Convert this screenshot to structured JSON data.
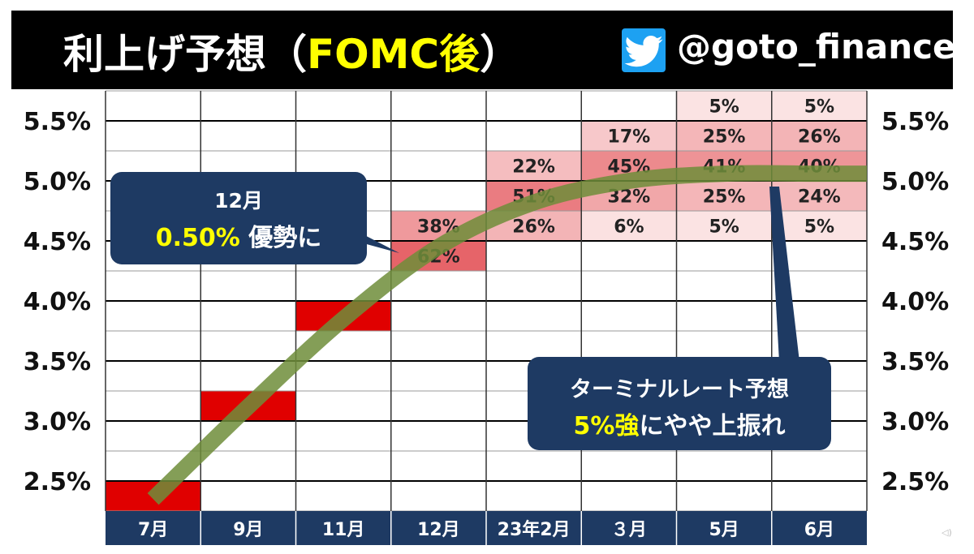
{
  "header": {
    "title_prefix": "利上げ予想（",
    "title_highlight": "FOMC後",
    "title_suffix": "）",
    "handle": "@goto_finance",
    "icon": "twitter-bird-icon"
  },
  "callouts": {
    "december": {
      "line1": "12月",
      "line2_highlight": "0.50%",
      "line2_rest": " 優勢に"
    },
    "terminal": {
      "line1": "ターミナルレート予想",
      "line2_highlight": "5%強",
      "line2_rest": "にやや上振れ"
    }
  },
  "colors": {
    "header_bg": "#000000",
    "title_highlight": "#ffff00",
    "callout_bg": "#1e3a63",
    "xaxis_bg": "#1e3a63",
    "current_rate_red": "#e00000",
    "trend_line": "#6f8d3a"
  },
  "chart_data": {
    "type": "heatmap",
    "title": "利上げ予想（FOMC後）",
    "categories": [
      "7月",
      "9月",
      "11月",
      "12月",
      "23年2月",
      "３月",
      "5月",
      "6月"
    ],
    "y_ticks": [
      "2.5%",
      "3.0%",
      "3.5%",
      "4.0%",
      "4.5%",
      "5.0%",
      "5.5%"
    ],
    "y_range": [
      2.25,
      5.75
    ],
    "bucket_size": 0.25,
    "realized_rate": [
      {
        "month": "7月",
        "low": 2.25,
        "high": 2.5
      },
      {
        "month": "9月",
        "low": 3.0,
        "high": 3.25
      },
      {
        "month": "11月",
        "low": 3.75,
        "high": 4.0
      }
    ],
    "probabilities": [
      {
        "month": "12月",
        "cells": [
          {
            "low": 4.5,
            "p": 38,
            "label": "38%"
          },
          {
            "low": 4.25,
            "p": 62,
            "label": "62%"
          }
        ]
      },
      {
        "month": "23年2月",
        "cells": [
          {
            "low": 5.0,
            "p": 22,
            "label": "22%"
          },
          {
            "low": 4.75,
            "p": 51,
            "label": "51%"
          },
          {
            "low": 4.5,
            "p": 26,
            "label": "26%"
          }
        ]
      },
      {
        "month": "３月",
        "cells": [
          {
            "low": 5.25,
            "p": 17,
            "label": "17%"
          },
          {
            "low": 5.0,
            "p": 45,
            "label": "45%"
          },
          {
            "low": 4.75,
            "p": 32,
            "label": "32%"
          },
          {
            "low": 4.5,
            "p": 6,
            "label": "6%"
          }
        ]
      },
      {
        "month": "5月",
        "cells": [
          {
            "low": 5.5,
            "p": 5,
            "label": "5%"
          },
          {
            "low": 5.25,
            "p": 25,
            "label": "25%"
          },
          {
            "low": 5.0,
            "p": 41,
            "label": "41%"
          },
          {
            "low": 4.75,
            "p": 25,
            "label": "25%"
          },
          {
            "low": 4.5,
            "p": 5,
            "label": "5%"
          }
        ]
      },
      {
        "month": "6月",
        "cells": [
          {
            "low": 5.5,
            "p": 5,
            "label": "5%"
          },
          {
            "low": 5.25,
            "p": 26,
            "label": "26%"
          },
          {
            "low": 5.0,
            "p": 40,
            "label": "40%"
          },
          {
            "low": 4.75,
            "p": 24,
            "label": "24%"
          },
          {
            "low": 4.5,
            "p": 5,
            "label": "5%"
          }
        ]
      }
    ],
    "trend_line": [
      {
        "month": "7月",
        "rate": 2.35
      },
      {
        "month": "9月",
        "rate": 3.12
      },
      {
        "month": "11月",
        "rate": 3.85
      },
      {
        "month": "12月",
        "rate": 4.45
      },
      {
        "month": "23年2月",
        "rate": 4.82
      },
      {
        "month": "３月",
        "rate": 5.0
      },
      {
        "month": "5月",
        "rate": 5.06
      },
      {
        "month": "6月",
        "rate": 5.06
      }
    ]
  }
}
